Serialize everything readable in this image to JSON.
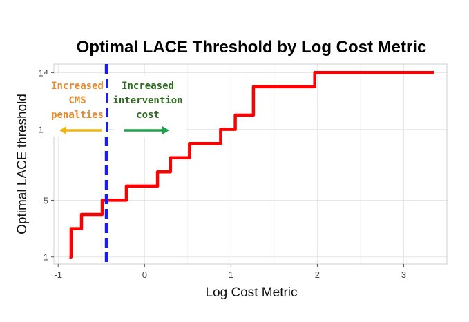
{
  "chart_data": {
    "type": "line",
    "title": "Optimal LACE Threshold by Log Cost Metric",
    "xlabel": "Log Cost Metric",
    "ylabel": "Optimal LACE threshold",
    "xlim": [
      -1.05,
      3.5
    ],
    "ylim": [
      0.5,
      14.6
    ],
    "x_ticks": [
      -1,
      0,
      1,
      2,
      3
    ],
    "x_tick_labels": [
      "-1",
      "0",
      "1",
      "2",
      "3"
    ],
    "y_ticks": [
      1,
      5,
      10,
      14
    ],
    "y_tick_labels": [
      "1",
      "5",
      "10",
      "14"
    ],
    "grid": true,
    "legend": "none",
    "series": [
      {
        "color": "#ff0000",
        "x": [
          -0.87,
          -0.85,
          -0.73,
          -0.49,
          -0.21,
          0.15,
          0.3,
          0.52,
          0.88,
          1.05,
          1.26,
          1.75,
          1.97,
          3.35
        ],
        "y": [
          1,
          3,
          4,
          5,
          6,
          7,
          8,
          9,
          10,
          11,
          13,
          13,
          14,
          14
        ],
        "step": true
      }
    ],
    "vline": {
      "x": -0.44,
      "color": "#1a1aff",
      "dashed": true
    },
    "annotations": [
      {
        "lines": [
          "Increased",
          "CMS",
          "penalties"
        ],
        "color": "#e68a2e",
        "arrow": "left",
        "arrow_color": "#f2b60a"
      },
      {
        "lines": [
          "Increased",
          "intervention",
          "cost"
        ],
        "color": "#2e6b1f",
        "arrow": "right",
        "arrow_color": "#1aa34a"
      }
    ]
  }
}
